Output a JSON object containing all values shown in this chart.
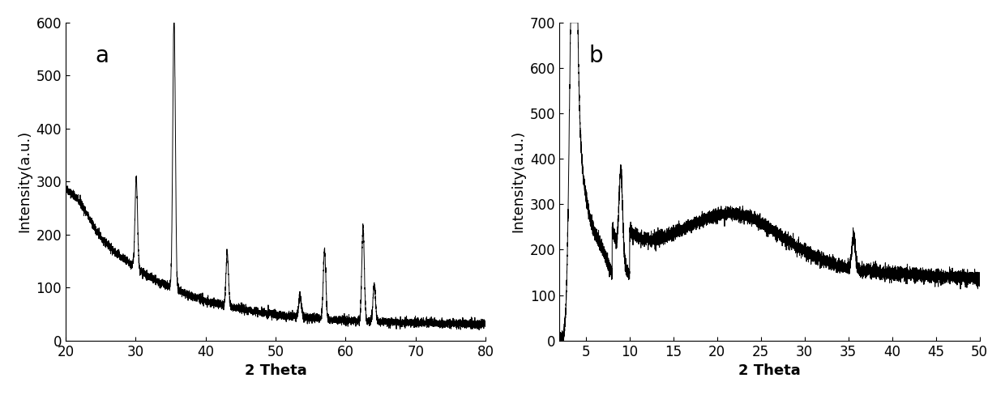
{
  "plot_a": {
    "label": "a",
    "xmin": 20,
    "xmax": 80,
    "ymin": 0,
    "ymax": 600,
    "xticks": [
      20,
      30,
      40,
      50,
      60,
      70,
      80
    ],
    "yticks": [
      0,
      100,
      200,
      300,
      400,
      500,
      600
    ],
    "xlabel": "2 Theta",
    "ylabel": "Intensity(a.u.)"
  },
  "plot_b": {
    "label": "b",
    "xmin": 2,
    "xmax": 50,
    "ymin": 0,
    "ymax": 700,
    "xticks": [
      5,
      10,
      15,
      20,
      25,
      30,
      35,
      40,
      45,
      50
    ],
    "yticks": [
      0,
      100,
      200,
      300,
      400,
      500,
      600,
      700
    ],
    "xlabel": "2 Theta",
    "ylabel": "Intensity(a.u.)"
  },
  "line_color": "#000000",
  "line_width": 0.7,
  "label_fontsize": 20,
  "axis_fontsize": 13,
  "tick_fontsize": 12
}
